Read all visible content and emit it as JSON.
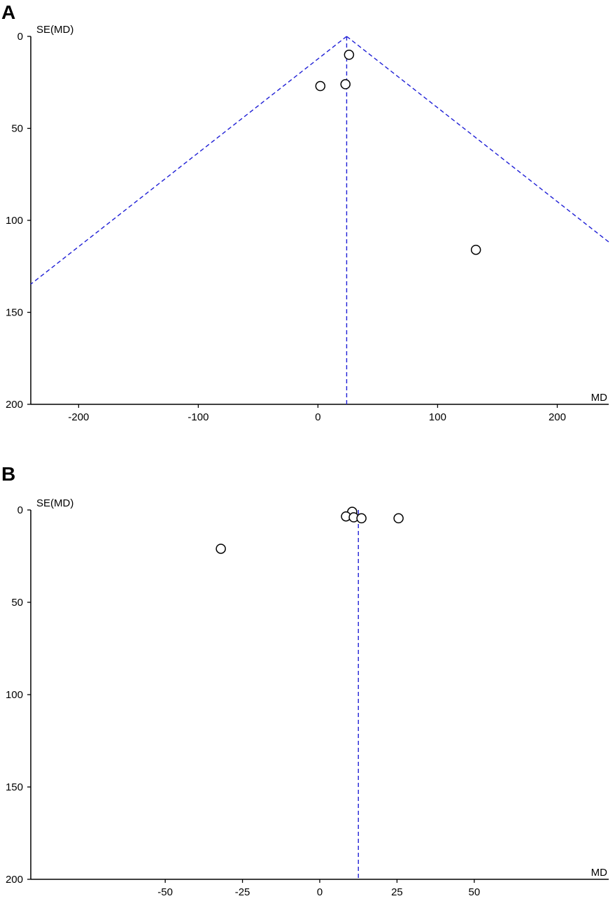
{
  "chart_data": [
    {
      "panel": "A",
      "type": "scatter",
      "xlabel": "MD",
      "ylabel": "SE(MD)",
      "xlim": [
        -240,
        243
      ],
      "ylim": [
        0,
        200
      ],
      "y_inverted": true,
      "xticks": [
        "-200",
        "-100",
        "0",
        "100",
        "200"
      ],
      "yticks": [
        "0",
        "50",
        "100",
        "150",
        "200"
      ],
      "pooled_md": 24,
      "funnel_lines": true,
      "points": [
        {
          "x": 26,
          "y": 10
        },
        {
          "x": 2,
          "y": 27
        },
        {
          "x": 23,
          "y": 26
        },
        {
          "x": 132,
          "y": 116
        }
      ]
    },
    {
      "panel": "B",
      "type": "scatter",
      "xlabel": "MD",
      "ylabel": "SE(MD)",
      "xlim": [
        -93.5,
        93.5
      ],
      "ylim": [
        0,
        200
      ],
      "y_inverted": true,
      "xticks": [
        "-50",
        "-25",
        "0",
        "25",
        "50"
      ],
      "yticks": [
        "0",
        "50",
        "100",
        "150",
        "200"
      ],
      "pooled_md": 12.5,
      "funnel_lines": false,
      "points": [
        {
          "x": 10.5,
          "y": 1
        },
        {
          "x": 8.5,
          "y": 3.5
        },
        {
          "x": 11,
          "y": 4
        },
        {
          "x": 13.5,
          "y": 4.5
        },
        {
          "x": 25.5,
          "y": 4.5
        },
        {
          "x": -32,
          "y": 21
        }
      ]
    }
  ]
}
